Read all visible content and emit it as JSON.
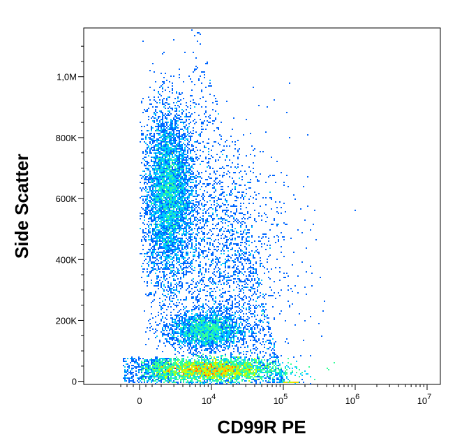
{
  "chart_data": {
    "type": "scatter",
    "subtype": "flow-cytometry-density-plot",
    "xlabel": "CD99R PE",
    "ylabel": "Side Scatter",
    "x_scale": "biexponential",
    "y_scale": "linear",
    "xlim": [
      -1000,
      15000000
    ],
    "ylim": [
      -10000,
      1160000
    ],
    "x_ticks": [
      {
        "value": 0,
        "base": "0",
        "exp": ""
      },
      {
        "value": 10000,
        "base": "10",
        "exp": "4"
      },
      {
        "value": 100000,
        "base": "10",
        "exp": "5"
      },
      {
        "value": 1000000,
        "base": "10",
        "exp": "6"
      },
      {
        "value": 10000000,
        "base": "10",
        "exp": "7"
      }
    ],
    "y_ticks": [
      {
        "value": 0,
        "label": "0"
      },
      {
        "value": 200000,
        "label": "200K"
      },
      {
        "value": 400000,
        "label": "400K"
      },
      {
        "value": 600000,
        "label": "600K"
      },
      {
        "value": 800000,
        "label": "800K"
      },
      {
        "value": 1000000,
        "label": "1,0M"
      }
    ],
    "populations": [
      {
        "x_center": 2500,
        "y_center": 620000,
        "x_log_sd": 0.18,
        "y_sd": 140000,
        "density": "high"
      },
      {
        "x_center": 8000,
        "y_center": 170000,
        "x_log_sd": 0.25,
        "y_sd": 30000,
        "density": "medium"
      },
      {
        "x_center": 10000,
        "y_center": 40000,
        "x_log_sd": 0.45,
        "y_sd": 18000,
        "density": "very high"
      },
      {
        "x_center": 12000,
        "y_center": 400000,
        "x_log_sd": 0.5,
        "y_sd": 200000,
        "density": "low"
      }
    ],
    "colormap": [
      "#0000cc",
      "#0066ff",
      "#00ccff",
      "#33ff99",
      "#ccff00",
      "#ffcc00",
      "#ff6600",
      "#ff0000"
    ],
    "grid": false
  }
}
